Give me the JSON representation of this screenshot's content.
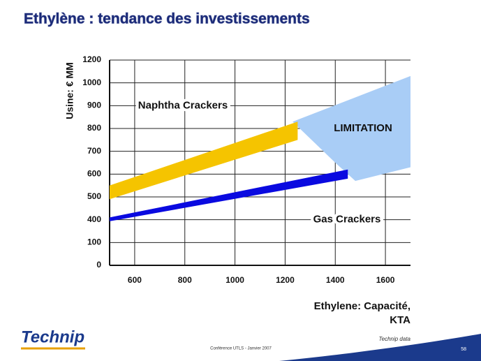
{
  "chart_data": {
    "type": "band",
    "title": "Ethylène : tendance des investissements",
    "y_label": "Usine: € MM",
    "x_label": [
      "Ethylene: Capacité,",
      "KTA"
    ],
    "xlim": [
      500,
      1700
    ],
    "xticks": [
      600,
      800,
      1000,
      1200,
      1400,
      1600
    ],
    "ylim": [
      0,
      1200
    ],
    "yticks": [
      0,
      100,
      400,
      500,
      600,
      700,
      800,
      900,
      1000,
      1200
    ],
    "grid": true,
    "series": [
      {
        "name": "Naphtha Crackers",
        "color": "#f5c400",
        "x": [
          500,
          1250
        ],
        "low": [
          490,
          750
        ],
        "high": [
          550,
          830
        ]
      },
      {
        "name": "Gas Crackers",
        "color": "#0a0ae0",
        "x": [
          500,
          1450
        ],
        "low": [
          380,
          580
        ],
        "high": [
          410,
          620
        ]
      }
    ],
    "region": {
      "name": "LIMITATION",
      "color": "#a9cdf6",
      "x": [
        1230,
        1700,
        1700,
        1480,
        1400
      ],
      "y": [
        830,
        1060,
        630,
        570,
        650
      ]
    }
  },
  "footer": {
    "logo": "Technip",
    "source": "Technip data",
    "conference": "Conférence UTLS - Janvier 2007",
    "page": "58"
  }
}
